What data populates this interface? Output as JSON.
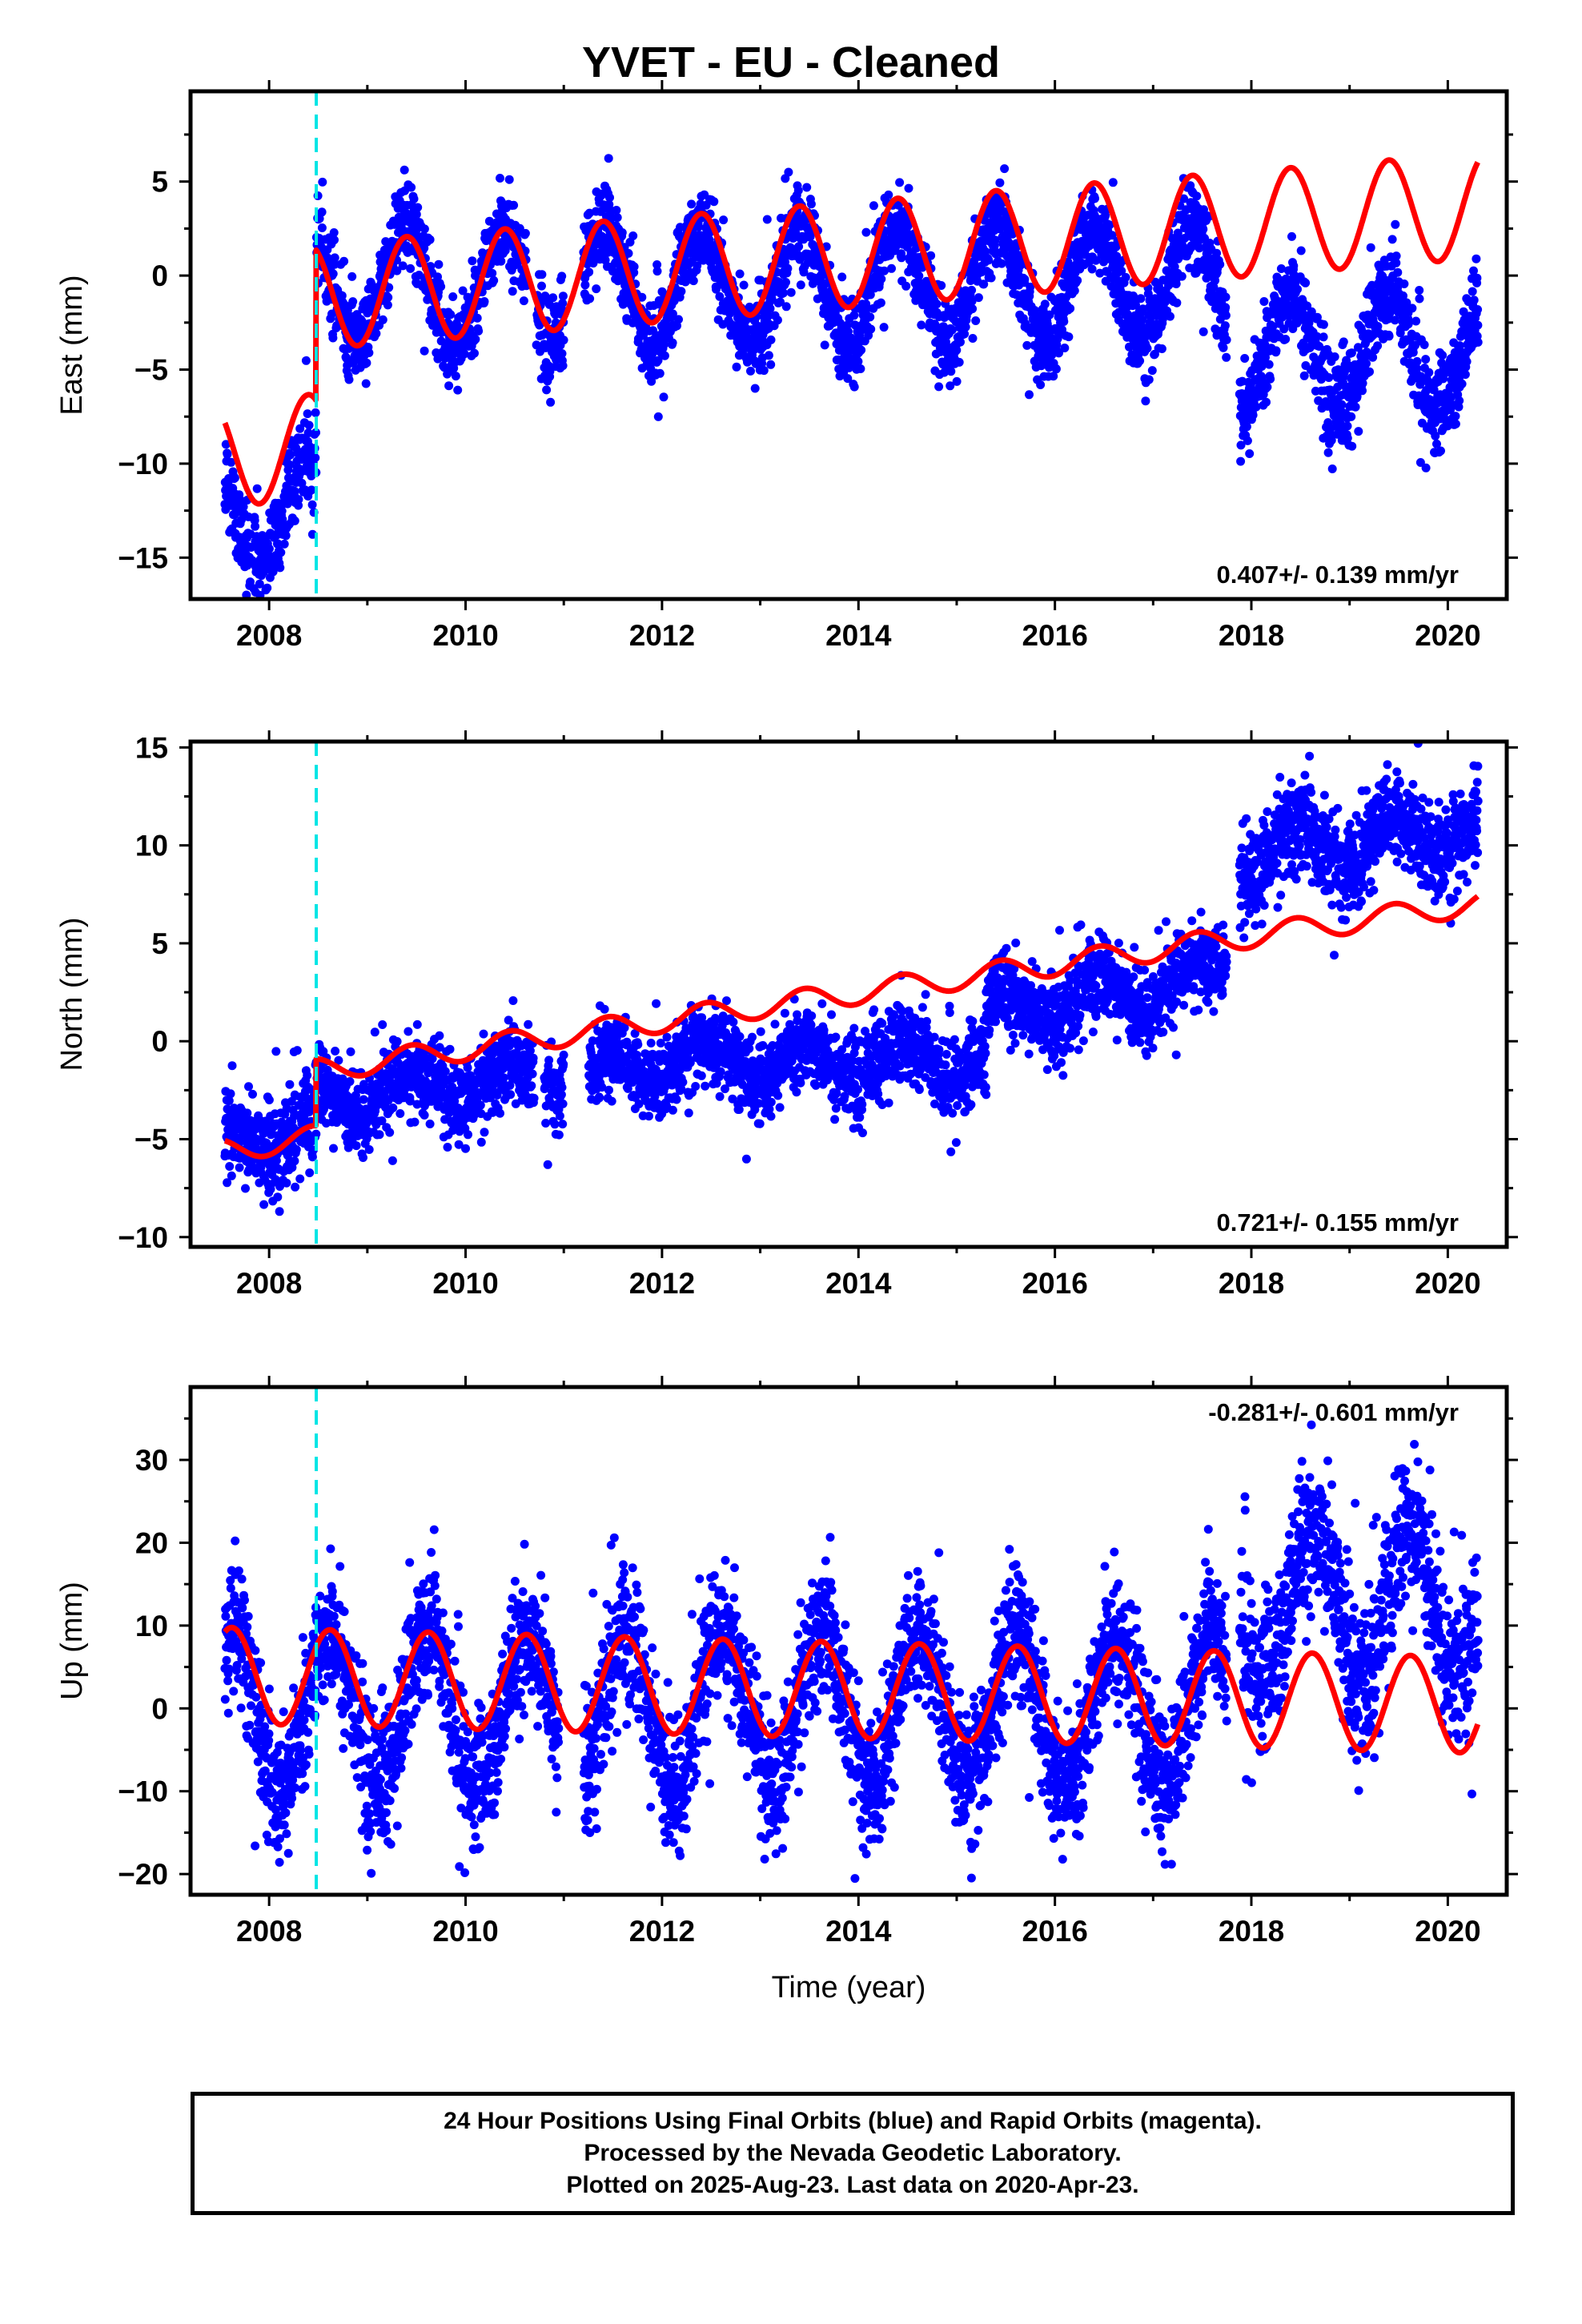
{
  "title": "YVET  - EU - Cleaned",
  "footer": {
    "line1": "24 Hour Positions Using Final Orbits (blue) and Rapid Orbits (magenta).",
    "line2": "Processed by the Nevada Geodetic Laboratory.",
    "line3": "Plotted on 2025-Aug-23. Last data on 2020-Apr-23."
  },
  "colors": {
    "final_orbits": "#0000ff",
    "model_fit": "#ff0000",
    "step_marker": "#00e5e5"
  },
  "chart_data": [
    {
      "type": "scatter",
      "component": "east",
      "ylabel": "East (mm)",
      "xlim": [
        2007.2,
        2020.6
      ],
      "ylim": [
        -17.2,
        9.8
      ],
      "xticks": [
        2008,
        2010,
        2012,
        2014,
        2016,
        2018,
        2020
      ],
      "yticks": [
        -15,
        -10,
        -5,
        0,
        5
      ],
      "rate_text": "0.407+/- 0.139 mm/yr",
      "equipment_change_epoch": 2008.48,
      "fit": {
        "name": "model",
        "pre_step_offset": -9.5,
        "post_step_offset": -1.5,
        "annual_amplitude": 2.8,
        "peak_phase": 0.4,
        "rate": 0.407
      },
      "observed": {
        "data_span": [
          2007.55,
          2020.31
        ],
        "gaps": [
          [
            2010.62,
            2010.72
          ],
          [
            2011.0,
            2011.2
          ],
          [
            2017.75,
            2017.88
          ]
        ],
        "segments": [
          {
            "start": 2007.55,
            "end": 2008.48,
            "offset": -12.5,
            "amplitude": 2.8,
            "noise": 1.2
          },
          {
            "start": 2008.48,
            "end": 2017.75,
            "offset": -0.5,
            "amplitude": 3.0,
            "noise": 1.1
          },
          {
            "start": 2017.88,
            "end": 2020.31,
            "offset": -4.0,
            "amplitude": 3.0,
            "noise": 1.2
          }
        ]
      }
    },
    {
      "type": "scatter",
      "component": "north",
      "ylabel": "North (mm)",
      "xlim": [
        2007.2,
        2020.6
      ],
      "ylim": [
        -10.5,
        15.3
      ],
      "xticks": [
        2008,
        2010,
        2012,
        2014,
        2016,
        2018,
        2020
      ],
      "yticks": [
        -10,
        -5,
        0,
        5,
        10,
        15
      ],
      "rate_text": "0.721+/- 0.155 mm/yr",
      "equipment_change_epoch": 2008.48,
      "fit": {
        "name": "model",
        "pre_step_offset": -5.6,
        "post_step_offset": -2.2,
        "annual_amplitude": 0.6,
        "peak_phase": 0.45,
        "rate": 0.721
      },
      "observed": {
        "data_span": [
          2007.55,
          2020.31
        ],
        "gaps": [
          [
            2010.7,
            2010.8
          ],
          [
            2011.0,
            2011.25
          ],
          [
            2017.75,
            2017.88
          ]
        ],
        "segments": [
          {
            "start": 2007.55,
            "end": 2008.48,
            "offset": -4.7,
            "trend": 0.0,
            "amplitude": 1.0,
            "noise": 1.1
          },
          {
            "start": 2008.48,
            "end": 2012.4,
            "offset": -3.0,
            "trend": 0.5,
            "amplitude": 0.8,
            "noise": 1.0
          },
          {
            "start": 2012.4,
            "end": 2015.3,
            "offset": -1.0,
            "trend": 0.0,
            "amplitude": 0.8,
            "noise": 1.0
          },
          {
            "start": 2015.3,
            "end": 2017.75,
            "offset": 1.5,
            "trend": 0.7,
            "amplitude": 1.0,
            "noise": 1.0
          },
          {
            "start": 2017.88,
            "end": 2020.31,
            "offset": 9.5,
            "trend": 0.5,
            "amplitude": 1.2,
            "noise": 1.2
          }
        ]
      }
    },
    {
      "type": "scatter",
      "component": "up",
      "ylabel": "Up (mm)",
      "xlabel": "Time (year)",
      "xlim": [
        2007.2,
        2020.6
      ],
      "ylim": [
        -22.5,
        38.8
      ],
      "xticks": [
        2008,
        2010,
        2012,
        2014,
        2016,
        2018,
        2020
      ],
      "yticks": [
        -20,
        -10,
        0,
        10,
        20,
        30
      ],
      "rate_text": "-0.281+/- 0.601 mm/yr",
      "equipment_change_epoch": 2008.48,
      "fit": {
        "name": "model",
        "offset": 4.0,
        "annual_amplitude": 5.8,
        "peak_phase": 0.62,
        "rate": -0.281
      },
      "observed": {
        "data_span": [
          2007.55,
          2020.31
        ],
        "gaps": [
          [
            2010.95,
            2011.2
          ],
          [
            2017.75,
            2017.88
          ]
        ],
        "segments": [
          {
            "start": 2007.55,
            "end": 2017.75,
            "offset": 0.0,
            "amplitude": 9.0,
            "noise": 4.0
          },
          {
            "start": 2017.88,
            "end": 2020.31,
            "offset": 13.0,
            "amplitude": 9.0,
            "noise": 4.5
          }
        ]
      }
    }
  ]
}
